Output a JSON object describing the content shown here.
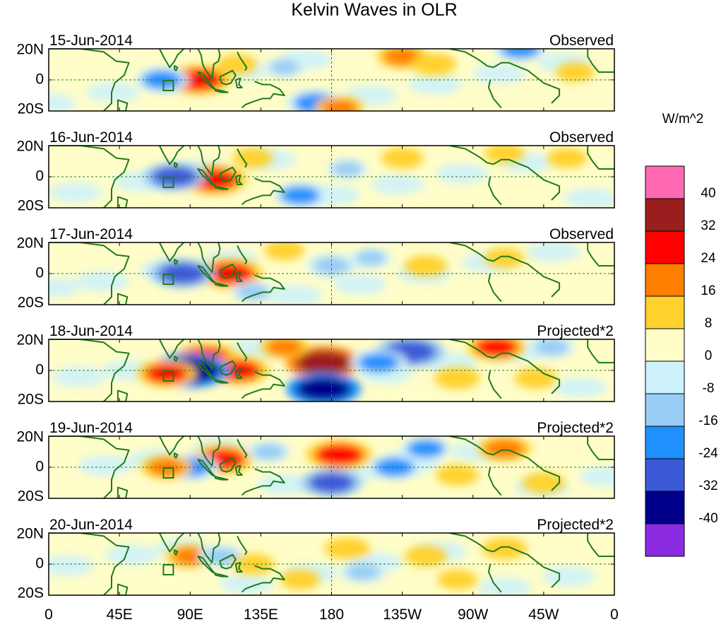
{
  "title": "Kelvin Waves in OLR",
  "colorbar": {
    "units": "W/m^2",
    "labels": [
      "40",
      "32",
      "24",
      "16",
      "8",
      "0",
      "-8",
      "-16",
      "-24",
      "-32",
      "-40"
    ],
    "colors": [
      "#ff69b4",
      "#9b1e1e",
      "#ff0000",
      "#ff7f00",
      "#ffd22e",
      "#fffdc8",
      "#cdf2fb",
      "#99ccf5",
      "#1e90ff",
      "#3c5ad8",
      "#00008b",
      "#8a2be2"
    ]
  },
  "axes": {
    "lat_labels": [
      "20N",
      "0",
      "20S"
    ],
    "lon_labels": [
      "0",
      "45E",
      "90E",
      "135E",
      "180",
      "135W",
      "90W",
      "45W",
      "0"
    ]
  },
  "panels": [
    {
      "date": "15-Jun-2014",
      "type": "Observed",
      "anomalies": [
        {
          "lon": 95,
          "lat": 0,
          "v": 30
        },
        {
          "lon": 72,
          "lat": 0,
          "v": -20
        },
        {
          "lon": 170,
          "lat": -15,
          "v": -24
        },
        {
          "lon": 225,
          "lat": 15,
          "v": 18
        },
        {
          "lon": 245,
          "lat": 10,
          "v": 14
        },
        {
          "lon": 300,
          "lat": 20,
          "v": -20
        },
        {
          "lon": 120,
          "lat": 10,
          "v": 10
        },
        {
          "lon": 185,
          "lat": -18,
          "v": 16
        },
        {
          "lon": 150,
          "lat": 8,
          "v": -9
        },
        {
          "lon": 335,
          "lat": 5,
          "v": 9
        }
      ]
    },
    {
      "date": "16-Jun-2014",
      "type": "Observed",
      "anomalies": [
        {
          "lon": 105,
          "lat": -2,
          "v": 30
        },
        {
          "lon": 80,
          "lat": 0,
          "v": -26
        },
        {
          "lon": 160,
          "lat": -12,
          "v": -20
        },
        {
          "lon": 225,
          "lat": 12,
          "v": 12
        },
        {
          "lon": 290,
          "lat": 15,
          "v": 10
        },
        {
          "lon": 190,
          "lat": 5,
          "v": -10
        },
        {
          "lon": 130,
          "lat": 12,
          "v": 10
        },
        {
          "lon": 330,
          "lat": 12,
          "v": 10
        }
      ]
    },
    {
      "date": "17-Jun-2014",
      "type": "Observed",
      "anomalies": [
        {
          "lon": 115,
          "lat": 0,
          "v": 30
        },
        {
          "lon": 85,
          "lat": 0,
          "v": -28
        },
        {
          "lon": 150,
          "lat": 15,
          "v": 10
        },
        {
          "lon": 180,
          "lat": 5,
          "v": -16
        },
        {
          "lon": 240,
          "lat": 5,
          "v": 12
        },
        {
          "lon": 205,
          "lat": 10,
          "v": -10
        },
        {
          "lon": 130,
          "lat": -12,
          "v": -12
        },
        {
          "lon": 290,
          "lat": 10,
          "v": 10
        }
      ]
    },
    {
      "date": "18-Jun-2014",
      "type": "Projected*2",
      "anomalies": [
        {
          "lon": 100,
          "lat": 8,
          "v": 30
        },
        {
          "lon": 120,
          "lat": 0,
          "v": 28
        },
        {
          "lon": 175,
          "lat": 5,
          "v": 36
        },
        {
          "lon": 90,
          "lat": 0,
          "v": -40
        },
        {
          "lon": 75,
          "lat": -2,
          "v": 24
        },
        {
          "lon": 175,
          "lat": -12,
          "v": -36
        },
        {
          "lon": 230,
          "lat": 12,
          "v": -32
        },
        {
          "lon": 210,
          "lat": 5,
          "v": -22
        },
        {
          "lon": 150,
          "lat": 15,
          "v": 16
        },
        {
          "lon": 285,
          "lat": 15,
          "v": 24
        },
        {
          "lon": 260,
          "lat": -5,
          "v": 14
        },
        {
          "lon": 310,
          "lat": -5,
          "v": 12
        },
        {
          "lon": 320,
          "lat": 15,
          "v": -14
        }
      ]
    },
    {
      "date": "19-Jun-2014",
      "type": "Projected*2",
      "anomalies": [
        {
          "lon": 110,
          "lat": 5,
          "v": 28
        },
        {
          "lon": 90,
          "lat": 0,
          "v": -22
        },
        {
          "lon": 75,
          "lat": 0,
          "v": 18
        },
        {
          "lon": 185,
          "lat": 8,
          "v": 30
        },
        {
          "lon": 180,
          "lat": -10,
          "v": -26
        },
        {
          "lon": 220,
          "lat": 0,
          "v": -20
        },
        {
          "lon": 240,
          "lat": 12,
          "v": -18
        },
        {
          "lon": 290,
          "lat": 12,
          "v": 20
        },
        {
          "lon": 260,
          "lat": -5,
          "v": 12
        },
        {
          "lon": 140,
          "lat": 10,
          "v": -12
        },
        {
          "lon": 315,
          "lat": -10,
          "v": 12
        }
      ]
    },
    {
      "date": "20-Jun-2014",
      "type": "Projected*2",
      "anomalies": [
        {
          "lon": 90,
          "lat": 5,
          "v": 16
        },
        {
          "lon": 110,
          "lat": 5,
          "v": -14
        },
        {
          "lon": 130,
          "lat": 0,
          "v": 12
        },
        {
          "lon": 190,
          "lat": 10,
          "v": 14
        },
        {
          "lon": 200,
          "lat": -5,
          "v": -14
        },
        {
          "lon": 240,
          "lat": 5,
          "v": 12
        },
        {
          "lon": 290,
          "lat": 10,
          "v": 14
        },
        {
          "lon": 160,
          "lat": -10,
          "v": 10
        },
        {
          "lon": 260,
          "lat": -10,
          "v": 10
        }
      ]
    }
  ]
}
